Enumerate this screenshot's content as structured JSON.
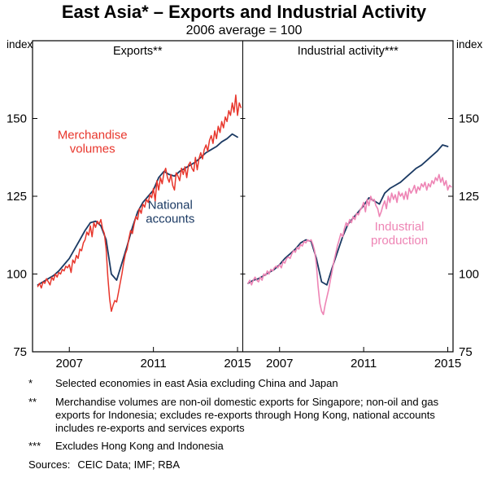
{
  "header": {
    "title": "East Asia* – Exports and Industrial Activity",
    "subtitle": "2006 average = 100"
  },
  "y_axis_unit": "index",
  "colors": {
    "red": "#e8362c",
    "navy": "#1b3a63",
    "pink": "#ee85b5",
    "axis": "#000000"
  },
  "chart_data": [
    {
      "type": "line",
      "panel": "left",
      "title": "Exports**",
      "x_range": [
        2005.25,
        2015.25
      ],
      "y_range": [
        75,
        175
      ],
      "y_ticks": [
        75,
        100,
        125,
        150
      ],
      "x_ticks": [
        2007,
        2011,
        2015
      ],
      "grid": false,
      "series": [
        {
          "name": "National accounts",
          "color_key": "navy",
          "line_width": 1.8,
          "x_start": 2005.5,
          "x_step": 0.25,
          "values": [
            96.5,
            97.5,
            98.5,
            99.5,
            101,
            103,
            105,
            108,
            111,
            114,
            116.5,
            117,
            115.5,
            111,
            100,
            98,
            103.5,
            109,
            115,
            120,
            123,
            125,
            127,
            131,
            133,
            132,
            131.5,
            133,
            134,
            135,
            136,
            137.5,
            139,
            140,
            141,
            142.5,
            143.5,
            145,
            144
          ],
          "label": {
            "x": 2011.8,
            "y": 121,
            "lines": [
              "National",
              "accounts"
            ]
          }
        },
        {
          "name": "Merchandise volumes",
          "color_key": "red",
          "line_width": 1.5,
          "x_start": 2005.5,
          "x_step": 0.0833333,
          "values": [
            96,
            97,
            95.5,
            97.5,
            97,
            98.5,
            97.5,
            96.5,
            99,
            98,
            100,
            99,
            100.5,
            100,
            101.5,
            101,
            102.5,
            102,
            103,
            100.5,
            104.5,
            103.5,
            106,
            105,
            108,
            107.5,
            110,
            111,
            113.5,
            112.5,
            115.5,
            112,
            116.5,
            115,
            117,
            116,
            117.5,
            114.5,
            113,
            108,
            99,
            92,
            88,
            90,
            91.5,
            91,
            94,
            97,
            100,
            103.5,
            106.5,
            108,
            111.5,
            114,
            113,
            116,
            118.5,
            117.5,
            121,
            119.5,
            122.5,
            121.5,
            124,
            123,
            125.5,
            124.5,
            127.5,
            123.5,
            130,
            127,
            131,
            129,
            132.5,
            134,
            131,
            129.5,
            132,
            128.5,
            127,
            132.5,
            131.5,
            130,
            134,
            132,
            134.5,
            131,
            135,
            136,
            134,
            133,
            137.5,
            133.5,
            137,
            139,
            137,
            140,
            141.5,
            139.5,
            143,
            144.5,
            142,
            146,
            143.5,
            147.5,
            145.5,
            149,
            147,
            150.5,
            149,
            152.5,
            151,
            155,
            152,
            157.5,
            151,
            155,
            153.5
          ],
          "label": {
            "x": 2008.1,
            "y": 143.5,
            "lines": [
              "Merchandise",
              "volumes"
            ]
          }
        }
      ]
    },
    {
      "type": "line",
      "panel": "right",
      "title": "Industrial activity***",
      "x_range": [
        2005.25,
        2015.25
      ],
      "y_range": [
        75,
        175
      ],
      "y_ticks": [
        75,
        100,
        125,
        150
      ],
      "x_ticks": [
        2007,
        2011,
        2015
      ],
      "grid": false,
      "series": [
        {
          "name": "unlabelled dark navy series",
          "color_key": "navy",
          "line_width": 1.8,
          "x_start": 2005.5,
          "x_step": 0.25,
          "values": [
            97,
            98,
            98.5,
            99.5,
            100.5,
            101.5,
            103,
            105,
            106.5,
            108,
            110,
            111,
            110.5,
            105,
            97.5,
            96.5,
            102,
            107,
            112,
            116,
            118,
            120,
            122,
            124.5,
            123.5,
            122.5,
            126,
            127.5,
            128.5,
            129.5,
            131,
            132.5,
            134,
            135,
            136.5,
            138,
            139.5,
            141.5,
            141
          ]
        },
        {
          "name": "Industrial production",
          "color_key": "pink",
          "line_width": 1.6,
          "x_start": 2005.5,
          "x_step": 0.0833333,
          "values": [
            97,
            98,
            96.5,
            98,
            99,
            98,
            97.5,
            99,
            98,
            100,
            99.5,
            101,
            100,
            101.5,
            101,
            102,
            102.5,
            102,
            103,
            102,
            104,
            103.5,
            105,
            105.5,
            105,
            106.5,
            107.5,
            107,
            108.5,
            108,
            109.5,
            109,
            110.5,
            110,
            111,
            110.5,
            111,
            109.5,
            107.5,
            103,
            96,
            90.5,
            88,
            87,
            90,
            92.5,
            95,
            98,
            101,
            104,
            106.5,
            109,
            111,
            113,
            112,
            114.5,
            116.5,
            115.5,
            117.5,
            116.5,
            118.5,
            117.5,
            119.5,
            119,
            120.5,
            121.5,
            123,
            120,
            124,
            122,
            125,
            123.5,
            124,
            122,
            121,
            118.5,
            120,
            122,
            123.5,
            121,
            125,
            123,
            126,
            124,
            125.5,
            123,
            126.5,
            125,
            126,
            124,
            126.5,
            124,
            127.5,
            126,
            127,
            128.5,
            126,
            128,
            127,
            129,
            128,
            129.5,
            127,
            129,
            128,
            130,
            129,
            131,
            130,
            132,
            129.5,
            131,
            128.5,
            130,
            127,
            128.5,
            128
          ],
          "label": {
            "x": 2012.7,
            "y": 114,
            "lines": [
              "Industrial",
              "production"
            ]
          }
        }
      ]
    }
  ],
  "footnotes": [
    {
      "marker": "*",
      "text": "Selected economies in east Asia excluding China and Japan"
    },
    {
      "marker": "**",
      "text": "Merchandise volumes are non-oil domestic exports for Singapore; non-oil and gas exports for Indonesia; excludes re-exports through Hong Kong, national accounts includes re-exports and services exports"
    },
    {
      "marker": "***",
      "text": "Excludes Hong Kong and Indonesia"
    }
  ],
  "sources": {
    "label": "Sources:",
    "text": "CEIC Data; IMF; RBA"
  }
}
